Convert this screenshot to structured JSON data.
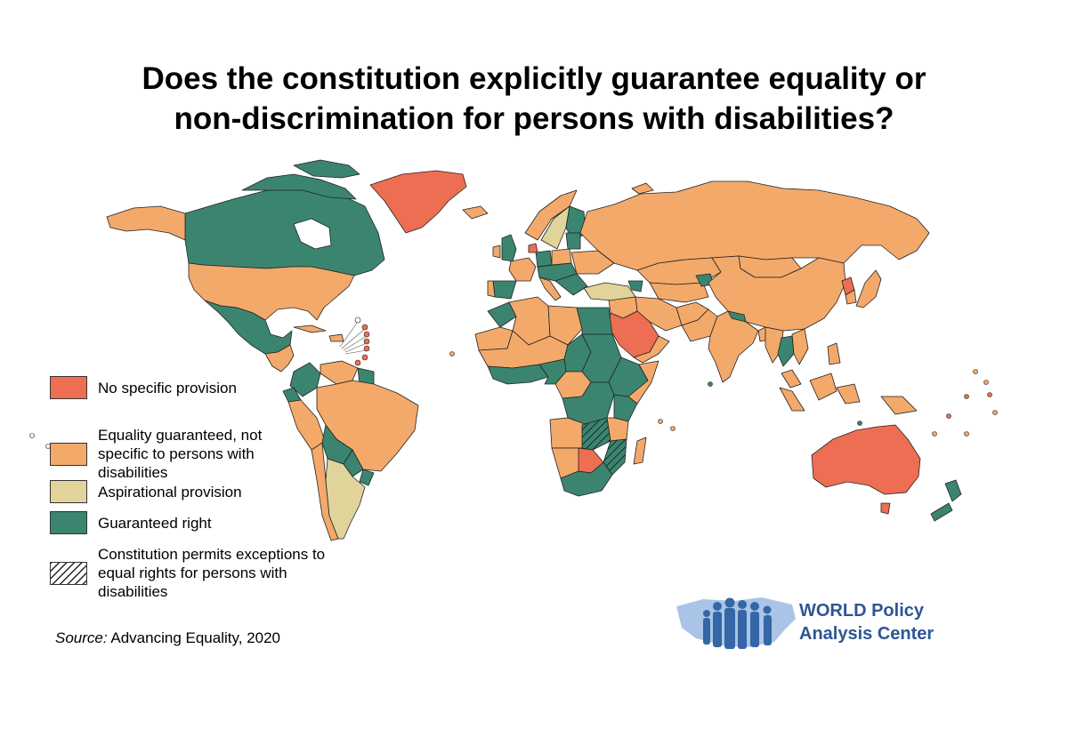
{
  "title": {
    "line1": "Does the constitution explicitly guarantee equality or",
    "line2": "non-discrimination for persons with disabilities?"
  },
  "colors": {
    "no_provision": "#ee6e53",
    "equality_general": "#f3a96a",
    "aspirational": "#e0d49b",
    "guaranteed": "#3b8570",
    "ocean": "#ffffff",
    "border": "#222222",
    "logo_blue": "#2d5694"
  },
  "legend": {
    "no_provision": "No specific provision",
    "equality_general": "Equality guaranteed, not specific to persons with disabilities",
    "aspirational": "Aspirational provision",
    "guaranteed": "Guaranteed right",
    "exceptions": "Constitution permits exceptions to equal rights for persons with disabilities"
  },
  "source": {
    "label": "Source:",
    "text": "Advancing Equality,",
    "year": "2020"
  },
  "logo": {
    "line1": "WORLD Policy",
    "line2": "Analysis Center"
  }
}
